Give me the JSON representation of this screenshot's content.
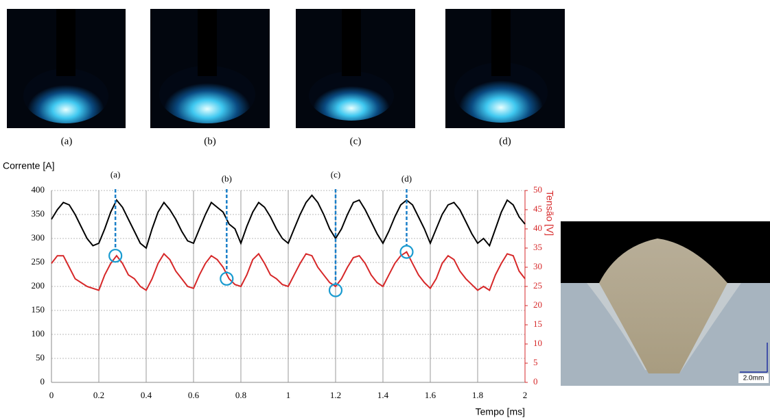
{
  "photos": {
    "captions": [
      "(a)",
      "(b)",
      "(c)",
      "(d)"
    ]
  },
  "weld": {
    "scale_label": "2.0mm"
  },
  "chart_data": {
    "type": "line",
    "ylabel": "Corrente [A]",
    "y2label": "Tensão [V]",
    "xlabel": "Tempo [ms]",
    "x": [
      0,
      0.025,
      0.05,
      0.075,
      0.1,
      0.125,
      0.15,
      0.175,
      0.2,
      0.225,
      0.25,
      0.275,
      0.3,
      0.325,
      0.35,
      0.375,
      0.4,
      0.425,
      0.45,
      0.475,
      0.5,
      0.525,
      0.55,
      0.575,
      0.6,
      0.625,
      0.65,
      0.675,
      0.7,
      0.725,
      0.75,
      0.775,
      0.8,
      0.825,
      0.85,
      0.875,
      0.9,
      0.925,
      0.95,
      0.975,
      1.0,
      1.025,
      1.05,
      1.075,
      1.1,
      1.125,
      1.15,
      1.175,
      1.2,
      1.225,
      1.25,
      1.275,
      1.3,
      1.325,
      1.35,
      1.375,
      1.4,
      1.425,
      1.45,
      1.475,
      1.5,
      1.525,
      1.55,
      1.575,
      1.6,
      1.625,
      1.65,
      1.675,
      1.7,
      1.725,
      1.75,
      1.775,
      1.8,
      1.825,
      1.85,
      1.875,
      1.9,
      1.925,
      1.95,
      1.975,
      2.0
    ],
    "series": [
      {
        "color": "#000000",
        "values": [
          340,
          360,
          375,
          370,
          350,
          325,
          300,
          285,
          290,
          320,
          355,
          380,
          365,
          340,
          315,
          290,
          280,
          320,
          355,
          375,
          360,
          340,
          315,
          295,
          290,
          320,
          350,
          375,
          365,
          355,
          330,
          320,
          290,
          325,
          355,
          375,
          365,
          345,
          320,
          300,
          290,
          320,
          350,
          375,
          390,
          375,
          350,
          320,
          300,
          320,
          350,
          375,
          380,
          360,
          335,
          310,
          290,
          315,
          345,
          370,
          380,
          370,
          345,
          320,
          290,
          320,
          350,
          370,
          375,
          360,
          335,
          310,
          290,
          300,
          285,
          320,
          355,
          380,
          370,
          345,
          330
        ]
      },
      {
        "color": "#d62728",
        "axis": "y2",
        "values": [
          31,
          33,
          33,
          30,
          27,
          26,
          25,
          24.5,
          24,
          28,
          31,
          33,
          31,
          28,
          27,
          25,
          24,
          27,
          31,
          33.5,
          32,
          29,
          27,
          25,
          24.5,
          28,
          31,
          33,
          32,
          30,
          27,
          25.5,
          25,
          28,
          32,
          33.5,
          31,
          28,
          27,
          25.5,
          25,
          28,
          31,
          33.5,
          33,
          30,
          28,
          26,
          25,
          27,
          30,
          32.5,
          33,
          31,
          28,
          26,
          25,
          28,
          31,
          33,
          34,
          31,
          28,
          26,
          24.5,
          27,
          31,
          33,
          32,
          29,
          27,
          25.5,
          24,
          25,
          24,
          28,
          31,
          33.5,
          33,
          29,
          27
        ]
      }
    ],
    "annotations": [
      {
        "label": "(a)",
        "x": 0.27,
        "y": 33
      },
      {
        "label": "(b)",
        "x": 0.74,
        "y": 27
      },
      {
        "label": "(c)",
        "x": 1.2,
        "y": 24
      },
      {
        "label": "(d)",
        "x": 1.5,
        "y": 34
      }
    ],
    "xlim": [
      0,
      2
    ],
    "xticks": [
      0,
      0.2,
      0.4,
      0.6,
      0.8,
      1,
      1.2,
      1.4,
      1.6,
      1.8,
      2
    ],
    "ylim": [
      0,
      400
    ],
    "yticks": [
      0,
      50,
      100,
      150,
      200,
      250,
      300,
      350,
      400
    ],
    "y2lim": [
      0,
      50
    ],
    "y2ticks": [
      0,
      5,
      10,
      15,
      20,
      25,
      30,
      35,
      40,
      45,
      50
    ],
    "grid": true
  }
}
